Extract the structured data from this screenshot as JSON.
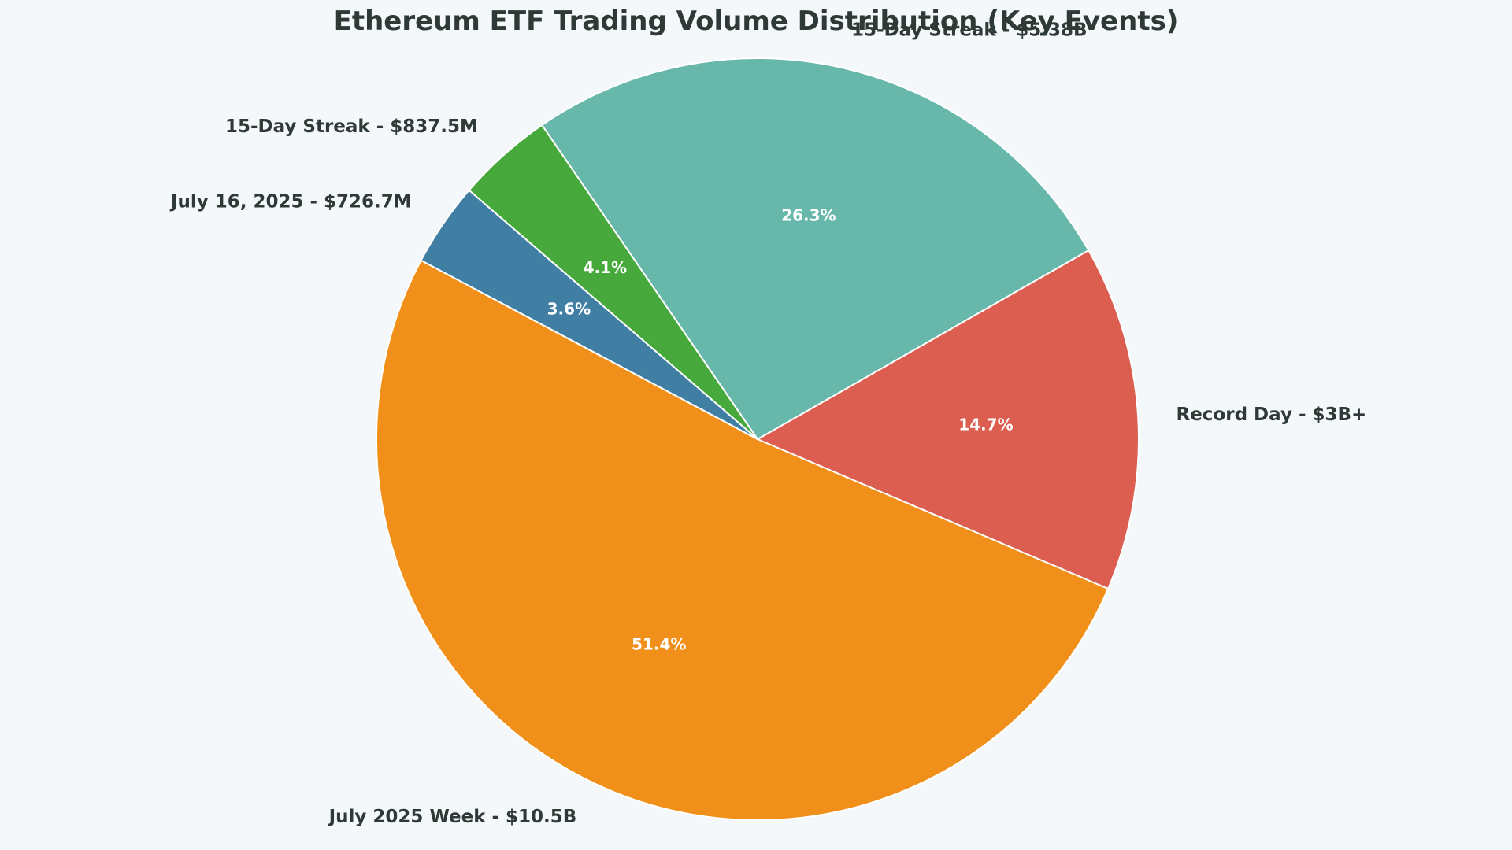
{
  "chart_data": {
    "type": "pie",
    "title": "Ethereum ETF Trading Volume Distribution (Key Events)",
    "start_angle_deg": 152,
    "slices": [
      {
        "label": "July 2025 Week - $10.5B",
        "value": 10.5,
        "percent_label": "51.4%",
        "color": "#f08f1a"
      },
      {
        "label": "Record Day - $3B+",
        "value": 3.0,
        "percent_label": "14.7%",
        "color": "#dc5e50"
      },
      {
        "label": "15-Day Streak - $5.38B",
        "value": 5.38,
        "percent_label": "26.3%",
        "color": "#67b8ab"
      },
      {
        "label": "15-Day Streak - $837.5M",
        "value": 0.8375,
        "percent_label": "4.1%",
        "color": "#47a83b"
      },
      {
        "label": "July 16, 2025 - $726.7M",
        "value": 0.7267,
        "percent_label": "3.6%",
        "color": "#417ea4"
      }
    ]
  }
}
